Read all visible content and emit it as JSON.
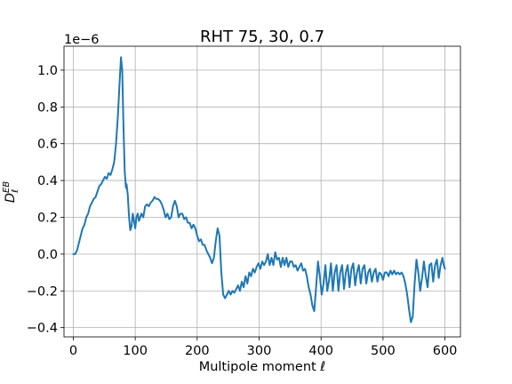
{
  "chart_data": {
    "type": "line",
    "title": "RHT 75, 30, 0.7",
    "xlabel": "Multipole moment ℓ",
    "ylabel": "D",
    "ylabel_sup": "EB",
    "ylabel_sub": "ℓ",
    "y_offset_text": "1e−6",
    "xlim": [
      -15,
      625
    ],
    "ylim": [
      -0.45,
      1.13
    ],
    "xticks": [
      0,
      100,
      200,
      300,
      400,
      500,
      600
    ],
    "xtick_labels": [
      "0",
      "100",
      "200",
      "300",
      "400",
      "500",
      "600"
    ],
    "yticks": [
      -0.4,
      -0.2,
      0.0,
      0.2,
      0.4,
      0.6,
      0.8,
      1.0
    ],
    "ytick_labels": [
      "−0.4",
      "−0.2",
      "0.0",
      "0.2",
      "0.4",
      "0.6",
      "0.8",
      "1.0"
    ],
    "grid": true,
    "series_color": "#1f77b4",
    "series": [
      {
        "x": [
          0,
          3,
          6,
          9,
          12,
          15,
          18,
          21,
          24,
          27,
          30,
          33,
          36,
          39,
          42,
          45,
          48,
          51,
          54,
          57,
          60,
          63,
          66,
          69,
          72,
          75,
          77,
          79,
          81,
          83,
          85,
          86,
          88,
          90,
          92,
          94,
          96,
          98,
          100,
          102,
          104,
          106,
          108,
          110,
          113,
          116,
          119,
          122,
          125,
          128,
          131,
          134,
          137,
          140,
          143,
          146,
          149,
          152,
          155,
          158,
          161,
          164,
          167,
          170,
          173,
          176,
          179,
          182,
          185,
          188,
          191,
          194,
          197,
          200,
          203,
          206,
          209,
          212,
          215,
          218,
          221,
          224,
          227,
          230,
          233,
          236,
          239,
          242,
          245,
          248,
          251,
          254,
          257,
          260,
          263,
          266,
          269,
          272,
          275,
          278,
          281,
          284,
          287,
          290,
          293,
          296,
          299,
          302,
          305,
          308,
          311,
          314,
          317,
          320,
          323,
          326,
          329,
          332,
          335,
          338,
          341,
          344,
          347,
          350,
          353,
          356,
          359,
          362,
          365,
          368,
          371,
          374,
          377,
          380,
          383,
          386,
          389,
          392,
          395,
          398,
          401,
          404,
          407,
          410,
          413,
          416,
          419,
          422,
          425,
          428,
          431,
          434,
          437,
          440,
          443,
          446,
          449,
          452,
          455,
          458,
          461,
          464,
          467,
          470,
          473,
          476,
          479,
          482,
          485,
          488,
          491,
          494,
          497,
          500,
          503,
          506,
          509,
          512,
          515,
          518,
          521,
          524,
          527,
          530,
          533,
          536,
          539,
          542,
          545,
          548,
          551,
          554,
          557,
          560,
          563,
          566,
          569,
          572,
          575,
          578,
          581,
          584,
          587,
          590,
          593,
          596,
          598,
          600
        ],
        "y": [
          0.0,
          0.0,
          0.02,
          0.06,
          0.1,
          0.14,
          0.16,
          0.2,
          0.22,
          0.26,
          0.28,
          0.3,
          0.31,
          0.34,
          0.37,
          0.38,
          0.4,
          0.42,
          0.41,
          0.44,
          0.43,
          0.46,
          0.5,
          0.6,
          0.75,
          0.95,
          1.07,
          1.0,
          0.7,
          0.45,
          0.36,
          0.38,
          0.32,
          0.2,
          0.13,
          0.15,
          0.22,
          0.18,
          0.14,
          0.2,
          0.22,
          0.18,
          0.2,
          0.22,
          0.2,
          0.26,
          0.27,
          0.26,
          0.28,
          0.29,
          0.31,
          0.3,
          0.3,
          0.29,
          0.27,
          0.24,
          0.2,
          0.22,
          0.19,
          0.2,
          0.26,
          0.29,
          0.26,
          0.2,
          0.22,
          0.22,
          0.19,
          0.2,
          0.17,
          0.17,
          0.14,
          0.16,
          0.14,
          0.1,
          0.07,
          0.08,
          0.05,
          0.05,
          0.02,
          0.0,
          -0.02,
          -0.05,
          -0.02,
          0.07,
          0.14,
          0.1,
          -0.1,
          -0.22,
          -0.24,
          -0.22,
          -0.2,
          -0.22,
          -0.2,
          -0.21,
          -0.19,
          -0.17,
          -0.2,
          -0.15,
          -0.18,
          -0.12,
          -0.16,
          -0.1,
          -0.12,
          -0.08,
          -0.1,
          -0.07,
          -0.05,
          -0.08,
          -0.04,
          -0.06,
          -0.04,
          0.0,
          -0.06,
          -0.02,
          -0.06,
          0.01,
          -0.03,
          -0.02,
          -0.07,
          -0.02,
          -0.06,
          -0.02,
          -0.07,
          -0.04,
          -0.04,
          -0.07,
          -0.06,
          -0.09,
          -0.07,
          -0.05,
          -0.09,
          -0.08,
          -0.12,
          -0.18,
          -0.22,
          -0.28,
          -0.31,
          -0.18,
          -0.04,
          -0.12,
          -0.22,
          -0.16,
          -0.06,
          -0.2,
          -0.14,
          -0.05,
          -0.2,
          -0.1,
          -0.06,
          -0.2,
          -0.1,
          -0.06,
          -0.19,
          -0.1,
          -0.06,
          -0.18,
          -0.08,
          -0.05,
          -0.17,
          -0.1,
          -0.06,
          -0.16,
          -0.08,
          -0.06,
          -0.16,
          -0.1,
          -0.08,
          -0.15,
          -0.1,
          -0.08,
          -0.15,
          -0.1,
          -0.11,
          -0.14,
          -0.1,
          -0.1,
          -0.12,
          -0.09,
          -0.11,
          -0.09,
          -0.11,
          -0.1,
          -0.11,
          -0.1,
          -0.12,
          -0.16,
          -0.22,
          -0.3,
          -0.37,
          -0.34,
          -0.16,
          -0.03,
          -0.1,
          -0.2,
          -0.13,
          -0.04,
          -0.12,
          -0.18,
          -0.06,
          -0.05,
          -0.15,
          -0.06,
          -0.03,
          -0.13,
          -0.06,
          -0.02,
          -0.06,
          -0.08
        ]
      }
    ]
  }
}
